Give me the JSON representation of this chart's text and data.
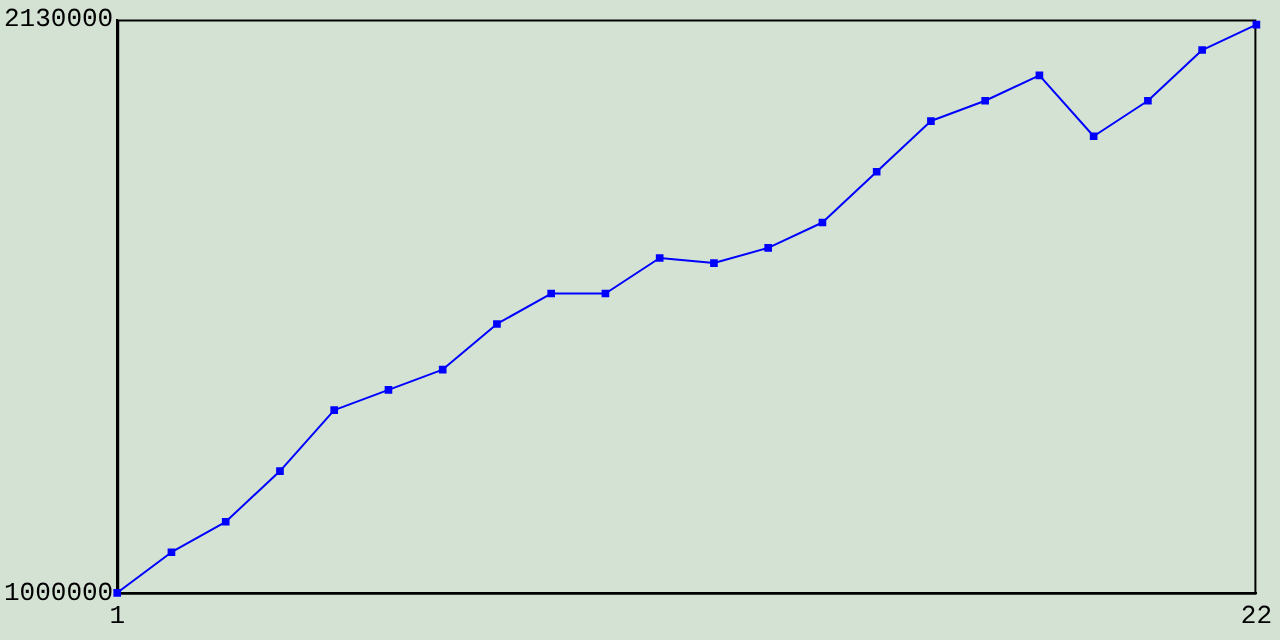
{
  "chart_data": {
    "type": "line",
    "x": [
      1,
      2,
      3,
      4,
      5,
      6,
      7,
      8,
      9,
      10,
      11,
      12,
      13,
      14,
      15,
      16,
      17,
      18,
      19,
      20,
      21,
      22
    ],
    "series": [
      {
        "color": "#0000ff",
        "values": [
          1000000,
          1080000,
          1140000,
          1240000,
          1360000,
          1400000,
          1440000,
          1530000,
          1590000,
          1590000,
          1660000,
          1650000,
          1680000,
          1730000,
          1830000,
          1930000,
          1970000,
          2020000,
          1900000,
          1970000,
          2070000,
          2120000
        ]
      }
    ],
    "xlim": [
      1,
      22
    ],
    "xticks": [
      1,
      22
    ],
    "ylim": [
      1000000,
      2130000
    ],
    "yticks": [
      1000000,
      2130000
    ],
    "grid": false,
    "legend": false,
    "marker": "square",
    "line_style": "solid"
  }
}
